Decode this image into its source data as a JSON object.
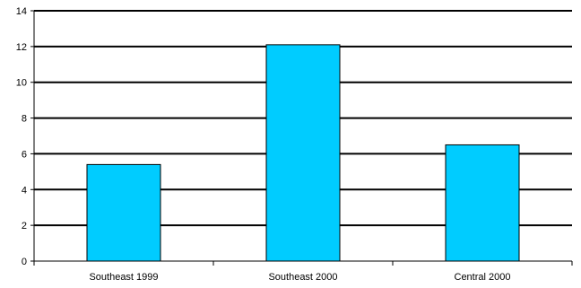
{
  "chart_data": {
    "type": "bar",
    "categories": [
      "Southeast 1999",
      "Southeast 2000",
      "Central 2000"
    ],
    "values": [
      5.4,
      12.1,
      6.5
    ],
    "title": "",
    "xlabel": "",
    "ylabel": "",
    "ylim": [
      0,
      14
    ],
    "yticks": [
      "0",
      "2",
      "4",
      "6",
      "8",
      "10",
      "12",
      "14"
    ],
    "grid": true,
    "legend": "none",
    "colors": {
      "bar_fill": "#00CCFF",
      "bar_stroke": "#000000",
      "grid": "#000000",
      "background": "#FFFFFF"
    }
  }
}
